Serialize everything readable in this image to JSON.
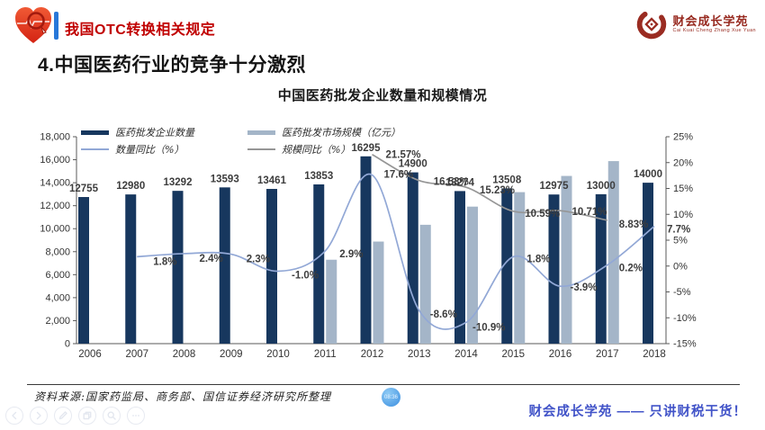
{
  "header": {
    "title": "我国OTC转换相关规定",
    "logo": {
      "name": "财会成长学苑",
      "subtitle": "Cai Kuai Cheng Zhang Xue Yuan"
    }
  },
  "heading": "4.中国医药行业的竞争十分激烈",
  "chart_data": {
    "type": "bar+line combo",
    "title": "中国医药批发企业数量和规模情况",
    "categories": [
      "2006",
      "2007",
      "2008",
      "2009",
      "2010",
      "2011",
      "2012",
      "2013",
      "2014",
      "2015",
      "2016",
      "2017",
      "2018"
    ],
    "left_axis": {
      "min": 0,
      "max": 18000,
      "step": 2000
    },
    "right_axis": {
      "min": -15,
      "max": 25,
      "step": 5
    },
    "legend_position": "top",
    "grid": "off",
    "series": [
      {
        "name": "医药批发企业数量",
        "type": "bar",
        "axis": "left",
        "color": "#17375e",
        "values": [
          12755,
          12980,
          13292,
          13593,
          13461,
          13853,
          16295,
          14900,
          13274,
          13508,
          12975,
          13000,
          14000
        ],
        "labels": [
          "12755",
          "12980",
          "13292",
          "13593",
          "13461",
          "13853",
          "16295",
          "14900",
          "13274",
          "13508",
          "12975",
          "13000",
          "14000"
        ]
      },
      {
        "name": "医药批发市场规模（亿元）",
        "type": "bar",
        "axis": "left",
        "color": "#a4b5c8",
        "values": [
          null,
          null,
          null,
          null,
          null,
          7300,
          8880,
          10340,
          11920,
          13180,
          14590,
          15880,
          null
        ],
        "labels": [
          null,
          null,
          null,
          null,
          null,
          null,
          null,
          null,
          null,
          null,
          null,
          null,
          null
        ]
      },
      {
        "name": "数量同比（%）",
        "type": "line",
        "axis": "right",
        "color": "#92a8d6",
        "values": [
          null,
          1.8,
          2.4,
          2.3,
          -1.0,
          2.9,
          17.6,
          -8.6,
          -10.9,
          1.8,
          -3.9,
          0.2,
          7.7
        ],
        "labels": [
          null,
          "1.8%",
          "2.4%",
          "2.3%",
          "-1.0%",
          "2.9%",
          "17.6%",
          "-8.6%",
          "-10.9%",
          "1.8%",
          "-3.9%",
          "0.2%",
          "7.7%"
        ],
        "label_dx": [
          0,
          18,
          17,
          17,
          15,
          16,
          13,
          12,
          7,
          15,
          11,
          13,
          14
        ],
        "label_dy": [
          0,
          5,
          5,
          5,
          4,
          3,
          -1,
          4,
          5,
          2,
          1,
          3,
          3
        ]
      },
      {
        "name": "规模同比（%）",
        "type": "line",
        "axis": "right",
        "color": "#969696",
        "values": [
          null,
          null,
          null,
          null,
          null,
          null,
          21.57,
          16.53,
          15.23,
          10.59,
          10.71,
          8.83,
          null
        ],
        "labels": [
          null,
          null,
          null,
          null,
          null,
          null,
          "21.57%",
          "16.53%",
          "15.23%",
          "10.59%",
          "10.71%",
          "8.83%",
          null
        ],
        "label_dx": [
          0,
          0,
          0,
          0,
          0,
          0,
          15,
          16,
          15,
          13,
          13,
          13,
          0
        ],
        "label_dy": [
          0,
          0,
          0,
          0,
          0,
          0,
          0,
          1,
          3,
          2,
          1,
          4,
          0
        ]
      }
    ]
  },
  "source_note": "资料来源:国家药监局、商务部、国信证券经济研究所整理",
  "footer": {
    "slogan": "财会成长学苑 —— 只讲财税干货！",
    "timer": "08:36"
  },
  "toolbar": {
    "buttons": [
      "previous",
      "next",
      "annotate",
      "pages",
      "zoom",
      "more"
    ]
  },
  "colors": {
    "title_red": "#c00000",
    "accent_blue_bar": "#2878d9",
    "slogan_blue": "#4153c8",
    "logo_red": "#97291f",
    "timer_blue": "#57a8ee"
  }
}
